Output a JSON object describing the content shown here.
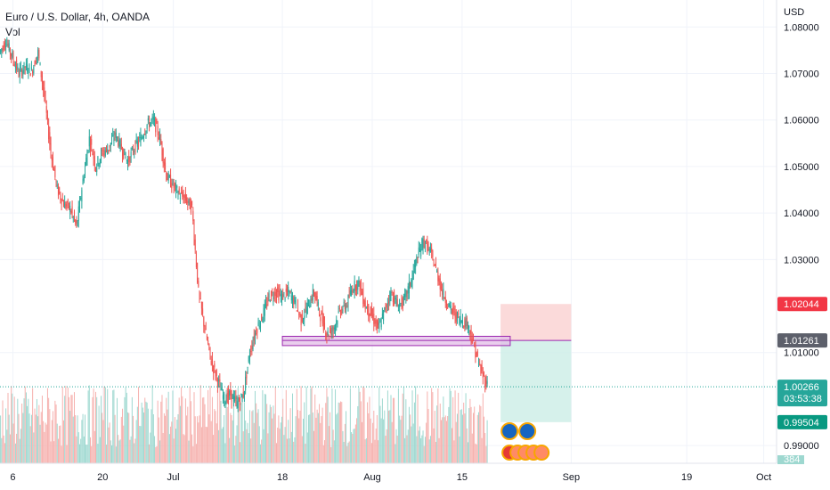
{
  "header": {
    "title": "Euro / U.S. Dollar, 4h, OANDA",
    "indicator": "Vol",
    "currency": "USD"
  },
  "colors": {
    "up": "#26a69a",
    "down": "#ef5350",
    "volume_up": "#9ed8d0",
    "volume_down": "#f6b1ae",
    "zone_fill": "#e1bee7",
    "zone_stroke": "#9c27b0",
    "stop_fill": "#fad4d4",
    "target_fill": "#cfeee7",
    "last_price": "#26a69a",
    "stop_badge": "#f23645",
    "entry_badge": "#5d606b",
    "target_badge": "#089981"
  },
  "chart_data": {
    "type": "candlestick",
    "symbol": "Euro / U.S. Dollar",
    "timeframe": "4h",
    "ylim": [
      0.9862,
      1.0858
    ],
    "y_ticks": [
      "1.08000",
      "1.07000",
      "1.06000",
      "1.05000",
      "1.04000",
      "1.03000",
      "1.01000",
      "0.99000"
    ],
    "y_tick_values": [
      1.08,
      1.07,
      1.06,
      1.05,
      1.04,
      1.03,
      1.01,
      0.99
    ],
    "x_ticks": [
      "6",
      "20",
      "Jul",
      "18",
      "Aug",
      "15",
      "Sep",
      "19",
      "Oct"
    ],
    "x_tick_days": [
      6,
      20,
      31,
      48,
      62,
      76,
      93,
      111,
      123
    ],
    "x_domain_days": [
      4,
      125
    ],
    "price_path": [
      [
        4,
        1.0745
      ],
      [
        5,
        1.077
      ],
      [
        6,
        1.0735
      ],
      [
        7,
        1.07
      ],
      [
        8,
        1.0715
      ],
      [
        9,
        1.0705
      ],
      [
        10,
        1.0745
      ],
      [
        11,
        1.065
      ],
      [
        12,
        1.053
      ],
      [
        13,
        1.045
      ],
      [
        14,
        1.042
      ],
      [
        15,
        1.041
      ],
      [
        16,
        1.037
      ],
      [
        17,
        1.047
      ],
      [
        18,
        1.056
      ],
      [
        19,
        1.05
      ],
      [
        20,
        1.053
      ],
      [
        21,
        1.054
      ],
      [
        22,
        1.057
      ],
      [
        23,
        1.054
      ],
      [
        24,
        1.051
      ],
      [
        25,
        1.054
      ],
      [
        26,
        1.056
      ],
      [
        27,
        1.059
      ],
      [
        28,
        1.06
      ],
      [
        29,
        1.056
      ],
      [
        30,
        1.048
      ],
      [
        31,
        1.046
      ],
      [
        32,
        1.044
      ],
      [
        33,
        1.043
      ],
      [
        34,
        1.041
      ],
      [
        35,
        1.023
      ],
      [
        36,
        1.015
      ],
      [
        37,
        1.008
      ],
      [
        38,
        1.004
      ],
      [
        39,
        1.0
      ],
      [
        40,
        1.001
      ],
      [
        41,
        0.999
      ],
      [
        42,
        1.001
      ],
      [
        43,
        1.01
      ],
      [
        44,
        1.015
      ],
      [
        45,
        1.018
      ],
      [
        46,
        1.022
      ],
      [
        47,
        1.023
      ],
      [
        48,
        1.022
      ],
      [
        49,
        1.023
      ],
      [
        50,
        1.021
      ],
      [
        51,
        1.017
      ],
      [
        52,
        1.02
      ],
      [
        53,
        1.023
      ],
      [
        54,
        1.018
      ],
      [
        55,
        1.014
      ],
      [
        56,
        1.015
      ],
      [
        57,
        1.019
      ],
      [
        58,
        1.02
      ],
      [
        59,
        1.024
      ],
      [
        60,
        1.025
      ],
      [
        61,
        1.02
      ],
      [
        62,
        1.018
      ],
      [
        63,
        1.015
      ],
      [
        64,
        1.019
      ],
      [
        65,
        1.023
      ],
      [
        66,
        1.02
      ],
      [
        67,
        1.021
      ],
      [
        68,
        1.025
      ],
      [
        69,
        1.03
      ],
      [
        70,
        1.034
      ],
      [
        71,
        1.032
      ],
      [
        72,
        1.028
      ],
      [
        73,
        1.023
      ],
      [
        74,
        1.02
      ],
      [
        75,
        1.018
      ],
      [
        76,
        1.017
      ],
      [
        77,
        1.016
      ],
      [
        78,
        1.011
      ],
      [
        79,
        1.006
      ],
      [
        80,
        1.003
      ]
    ],
    "last_price": 1.00266,
    "last_price_label": "1.00266",
    "countdown": "03:53:38",
    "volume_last_label": "384",
    "support_zone": {
      "from_day": 48,
      "to_day": 83.5,
      "low": 1.0115,
      "high": 1.0135
    },
    "position": {
      "type": "short",
      "from_day": 82,
      "to_day": 93,
      "stop": 1.02044,
      "entry": 1.01261,
      "target": 0.99504,
      "stop_label": "1.02044",
      "entry_label": "1.01261",
      "target_label": "0.99504"
    },
    "event_day": 84.5
  }
}
